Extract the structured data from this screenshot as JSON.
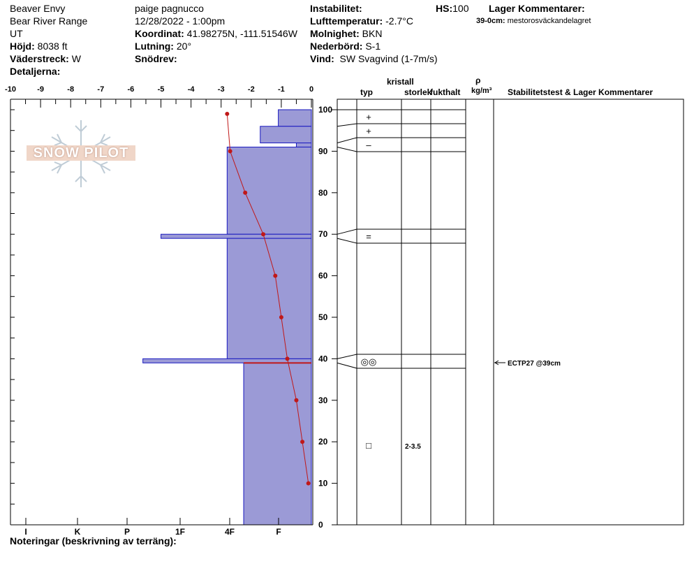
{
  "header": {
    "location": "Beaver Envy",
    "range": "Bear River Range",
    "state": "UT",
    "elevation_label": "Höjd:",
    "elevation": "8038 ft",
    "aspect_label": "Väderstreck:",
    "aspect": "W",
    "details_label": "Detaljerna:",
    "observer": "paige pagnucco",
    "datetime": "12/28/2022 - 1:00pm",
    "coords_label": "Koordinat:",
    "coords": "41.98275N, -111.51546W",
    "slope_label": "Lutning:",
    "slope": "20°",
    "drift_label": "Snödrev:",
    "drift": "",
    "instability_label": "Instabilitet:",
    "instability": "",
    "airtemp_label": "Lufttemperatur:",
    "airtemp": "-2.7°C",
    "sky_label": "Molnighet:",
    "sky": "BKN",
    "precip_label": "Nederbörd:",
    "precip": "S-1",
    "wind_label": "Vind:",
    "wind": "SW Svagvind (1-7m/s)",
    "hs_label": "HS:",
    "hs": "100",
    "layer_comments_label": "Lager Kommentarer:",
    "layer_comment_depth": "39-0cm:",
    "layer_comment_text": "mestorosväckandelagret"
  },
  "logo": {
    "text": "SNOW PILOT"
  },
  "notes_label": "Noteringar (beskrivning av terräng):",
  "right_table": {
    "headers": {
      "typ": "typ",
      "kristall": "kristall",
      "storlek": "storlek",
      "fukthalt": "fukthalt",
      "rho": "ρ",
      "density_unit": "kg/m³",
      "stability": "Stabilitetstest & Lager Kommentarer"
    },
    "test_result": "ECTP27 @39cm",
    "layers": [
      {
        "top": 100,
        "bottom": 96,
        "symbol": "+",
        "size": ""
      },
      {
        "top": 96,
        "bottom": 92,
        "symbol": "+",
        "size": ""
      },
      {
        "top": 92,
        "bottom": 91,
        "symbol": "–",
        "size": ""
      },
      {
        "top": 91,
        "bottom": 70,
        "symbol": "",
        "size": ""
      },
      {
        "top": 70,
        "bottom": 69,
        "symbol": "=",
        "size": ""
      },
      {
        "top": 69,
        "bottom": 40,
        "symbol": "",
        "size": ""
      },
      {
        "top": 40,
        "bottom": 39,
        "symbol": "◎◎",
        "size": ""
      },
      {
        "top": 39,
        "bottom": 0,
        "symbol": "□",
        "size": "2-3.5"
      }
    ]
  },
  "chart_data": {
    "type": "line",
    "x_axis": {
      "range": [
        -10,
        0
      ],
      "ticks": [
        "-10",
        "-9",
        "-8",
        "-7",
        "-6",
        "-5",
        "-4",
        "-3",
        "-2",
        "-1",
        "0"
      ]
    },
    "y_axis": {
      "range": [
        0,
        100
      ],
      "ticks": [
        "0",
        "10",
        "20",
        "30",
        "40",
        "50",
        "60",
        "70",
        "80",
        "90",
        "100"
      ]
    },
    "hardness_ticks": [
      {
        "label": "I",
        "value": 1
      },
      {
        "label": "K",
        "value": 2
      },
      {
        "label": "P",
        "value": 3
      },
      {
        "label": "1F",
        "value": 4
      },
      {
        "label": "4F",
        "value": 5
      },
      {
        "label": "F",
        "value": 6
      }
    ],
    "temperature_profile": [
      {
        "depth": 99,
        "temp": -2.8
      },
      {
        "depth": 90,
        "temp": -2.7
      },
      {
        "depth": 80,
        "temp": -2.2
      },
      {
        "depth": 70,
        "temp": -1.6
      },
      {
        "depth": 60,
        "temp": -1.2
      },
      {
        "depth": 50,
        "temp": -1.0
      },
      {
        "depth": 40,
        "temp": -0.8
      },
      {
        "depth": 30,
        "temp": -0.5
      },
      {
        "depth": 20,
        "temp": -0.3
      },
      {
        "depth": 10,
        "temp": -0.1
      }
    ],
    "hardness_layers": [
      {
        "top": 100,
        "bottom": 96,
        "temp_left": -1.1
      },
      {
        "top": 96,
        "bottom": 92,
        "temp_left": -1.7
      },
      {
        "top": 92,
        "bottom": 91,
        "temp_left": -0.5
      },
      {
        "top": 91,
        "bottom": 70,
        "temp_left": -2.8
      },
      {
        "top": 70,
        "bottom": 69,
        "temp_left": -5.0
      },
      {
        "top": 69,
        "bottom": 40,
        "temp_left": -2.8
      },
      {
        "top": 40,
        "bottom": 39,
        "temp_left": -5.6
      },
      {
        "top": 39,
        "bottom": 0,
        "temp_left": -2.25
      }
    ],
    "weak_layer_depth": 39,
    "colors": {
      "layer_fill": "#9b9ad6",
      "layer_stroke": "#1a1ac0",
      "temp_line": "#c01818",
      "weak_layer": "#c01818"
    }
  }
}
